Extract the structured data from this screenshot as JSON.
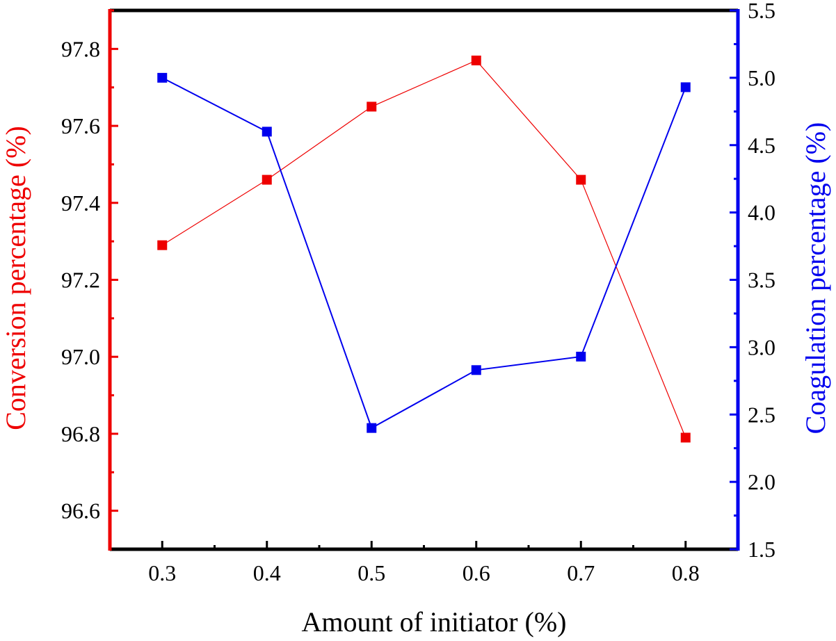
{
  "chart_data": {
    "type": "line",
    "title": "",
    "xlabel": "Amount of initiator (%)",
    "ylabel_left": "Conversion percentage (%)",
    "ylabel_right": "Coagulation percentage (%)",
    "x": [
      0.3,
      0.4,
      0.5,
      0.6,
      0.7,
      0.8
    ],
    "xlim": [
      0.25,
      0.85
    ],
    "x_ticks": [
      "0.3",
      "0.4",
      "0.5",
      "0.6",
      "0.7",
      "0.8"
    ],
    "ylim_left": [
      96.5,
      97.9
    ],
    "y_ticks_left": [
      "96.6",
      "96.8",
      "97.0",
      "97.2",
      "97.4",
      "97.6",
      "97.8"
    ],
    "ylim_right": [
      1.5,
      5.5
    ],
    "y_ticks_right": [
      "1.5",
      "2.0",
      "2.5",
      "3.0",
      "3.5",
      "4.0",
      "4.5",
      "5.0",
      "5.5"
    ],
    "grid": false,
    "series": [
      {
        "axis": "left",
        "values": [
          97.29,
          97.46,
          97.65,
          97.77,
          97.46,
          96.79
        ],
        "color": "#ee0000"
      },
      {
        "axis": "right",
        "values": [
          5.0,
          4.6,
          2.4,
          2.83,
          2.93,
          4.93
        ],
        "color": "#0000ee"
      }
    ]
  },
  "colors": {
    "left_axis": "#ee0000",
    "right_axis": "#0000ee",
    "frame": "#000000"
  }
}
